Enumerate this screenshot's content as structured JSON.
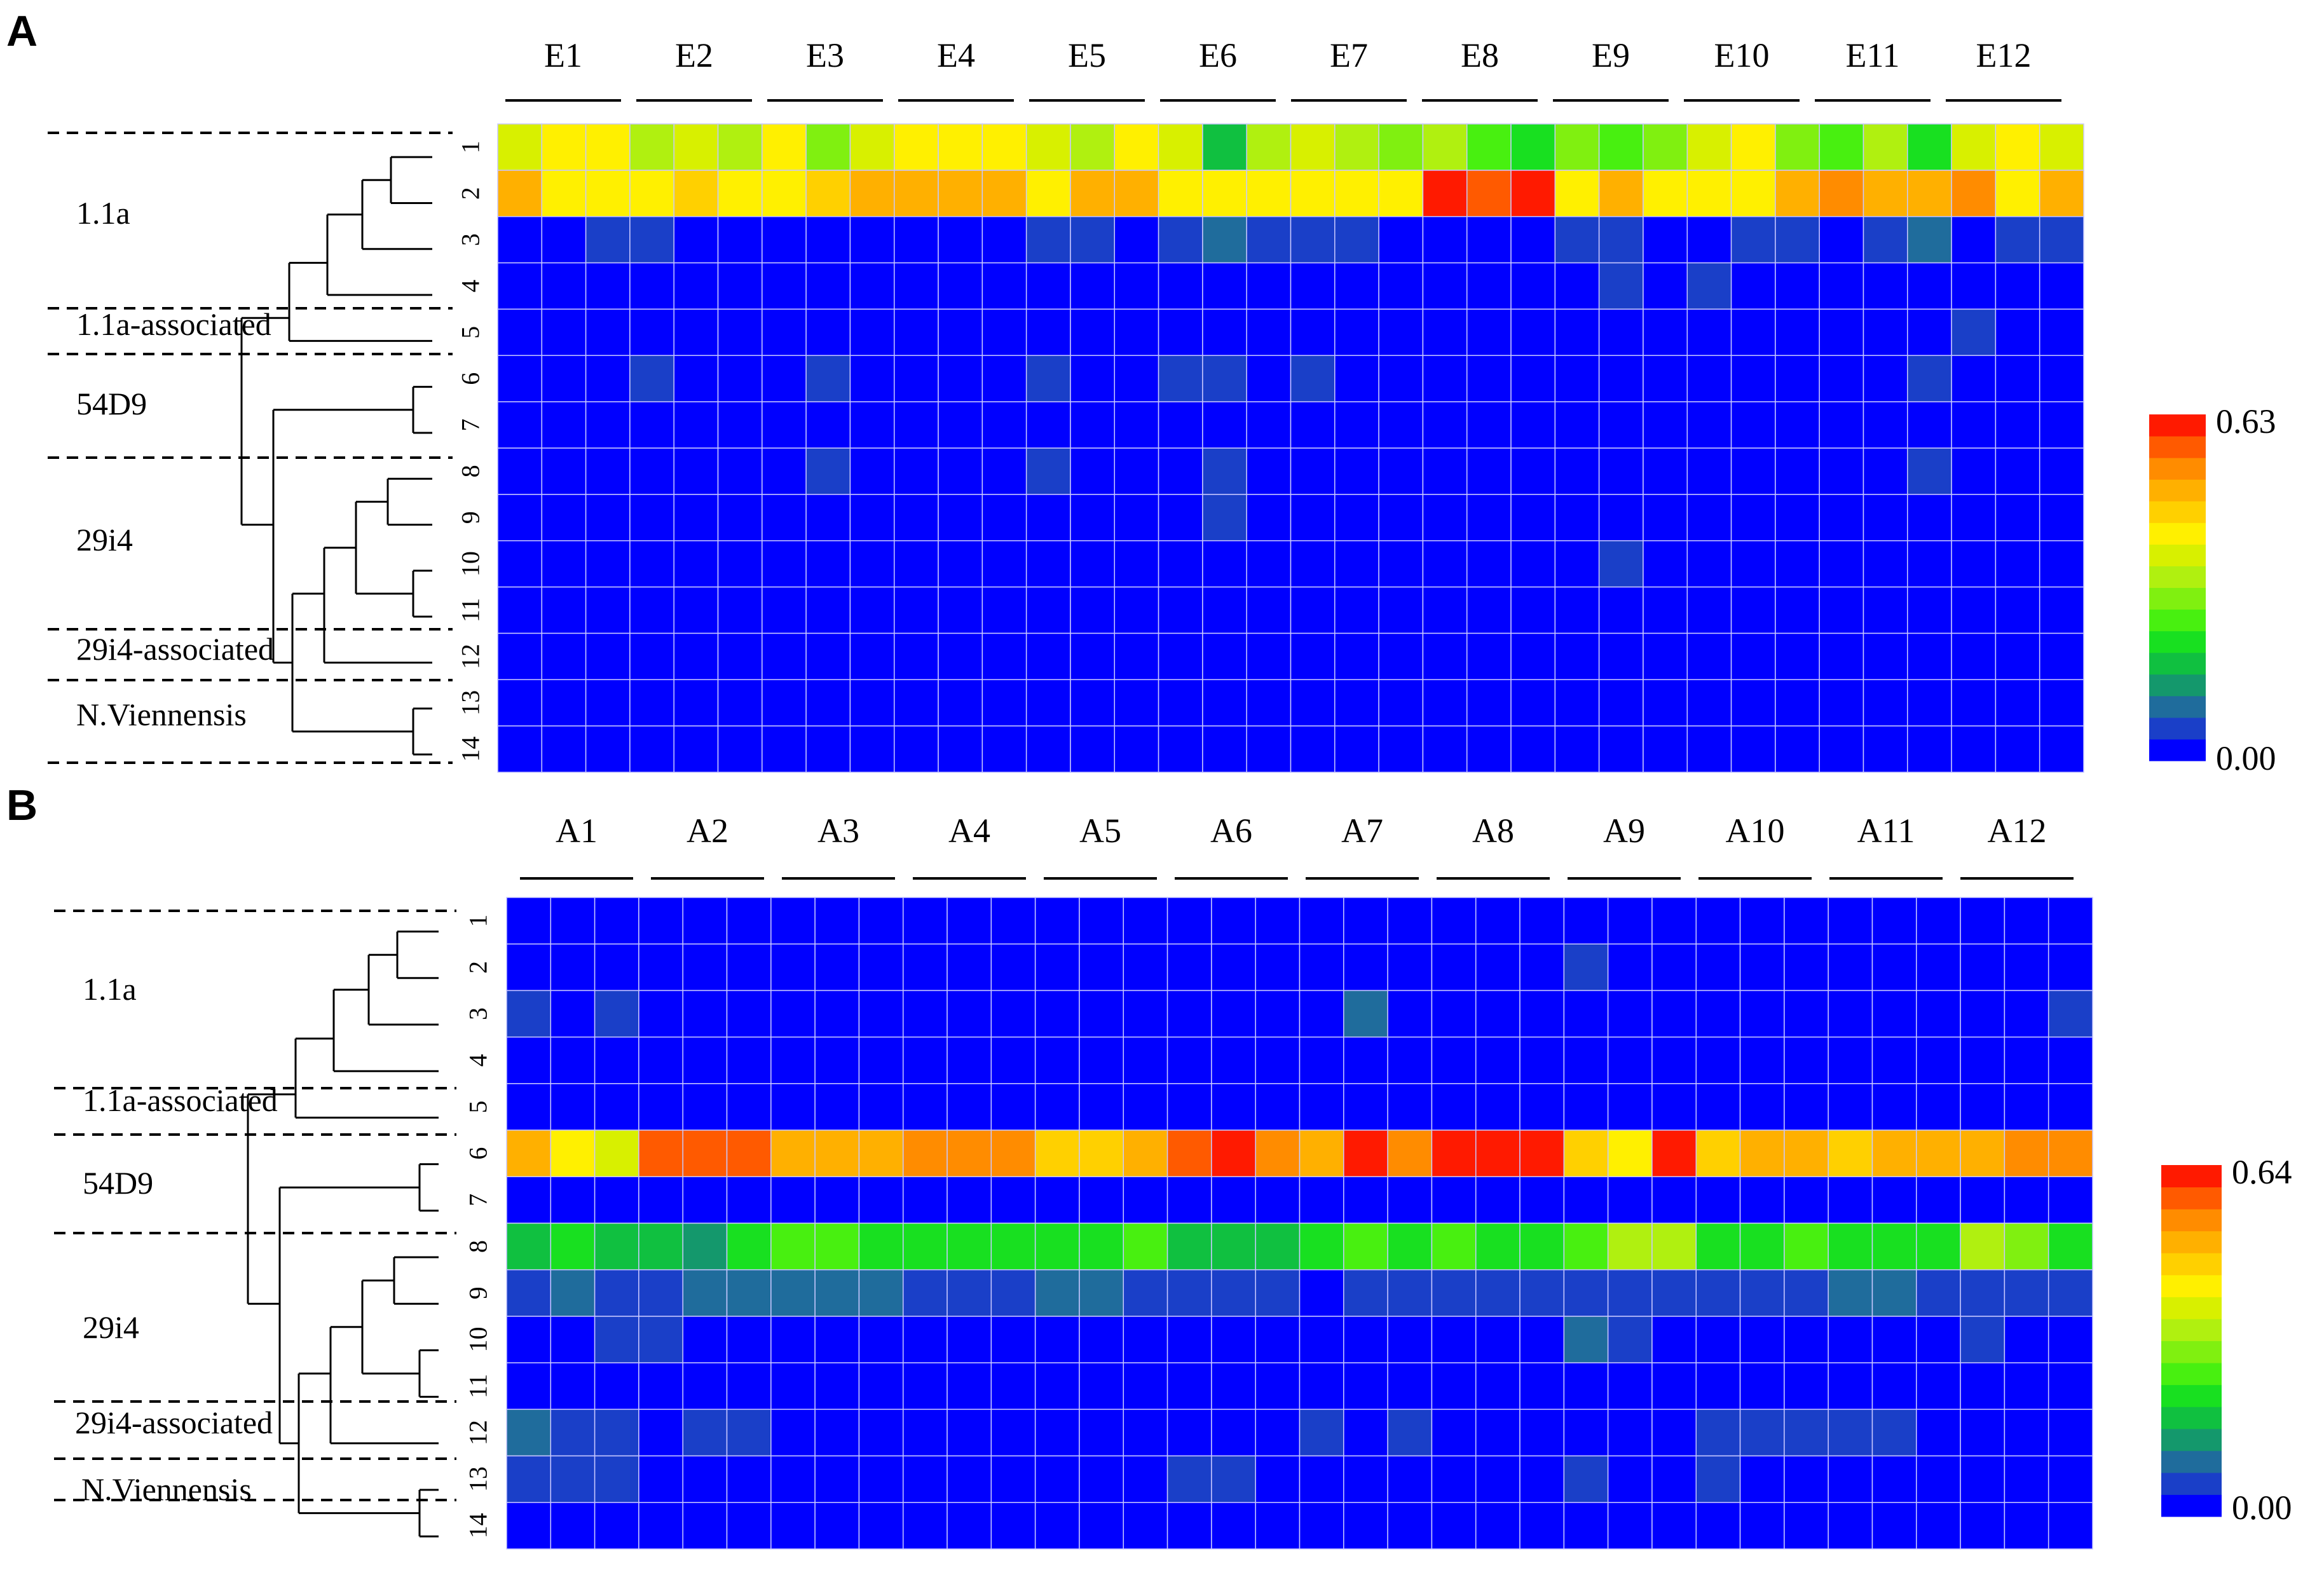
{
  "chart_data": [
    {
      "type": "heatmap",
      "panel_label": "A",
      "column_groups": [
        "E1",
        "E2",
        "E3",
        "E4",
        "E5",
        "E6",
        "E7",
        "E8",
        "E9",
        "E10",
        "E11",
        "E12"
      ],
      "replicates_per_group": 3,
      "row_labels": [
        "1",
        "2",
        "3",
        "4",
        "5",
        "6",
        "7",
        "8",
        "9",
        "10",
        "11",
        "12",
        "13",
        "14"
      ],
      "clades": [
        "1.1a",
        "1.1a-associated",
        "54D9",
        "29i4",
        "29i4-associated",
        "N.Viennensis"
      ],
      "colorbar": {
        "min": 0.0,
        "max": 0.63,
        "min_label": "0.00",
        "max_label": "0.63"
      },
      "values": [
        [
          0.38,
          0.4,
          0.4,
          0.33,
          0.39,
          0.32,
          0.4,
          0.28,
          0.38,
          0.44,
          0.4,
          0.4,
          0.36,
          0.33,
          0.44,
          0.38,
          0.16,
          0.32,
          0.38,
          0.33,
          0.28,
          0.32,
          0.26,
          0.2,
          0.3,
          0.26,
          0.28,
          0.38,
          0.44,
          0.3,
          0.24,
          0.33,
          0.22,
          0.38,
          0.4,
          0.36
        ],
        [
          0.5,
          0.4,
          0.44,
          0.4,
          0.46,
          0.4,
          0.43,
          0.46,
          0.5,
          0.52,
          0.5,
          0.5,
          0.4,
          0.5,
          0.5,
          0.4,
          0.44,
          0.4,
          0.4,
          0.4,
          0.44,
          0.63,
          0.58,
          0.63,
          0.44,
          0.5,
          0.4,
          0.44,
          0.44,
          0.5,
          0.56,
          0.5,
          0.5,
          0.54,
          0.44,
          0.5
        ],
        [
          0.0,
          0.0,
          0.05,
          0.05,
          0.0,
          0.0,
          0.0,
          0.0,
          0.0,
          0.0,
          0.0,
          0.0,
          0.05,
          0.05,
          0.0,
          0.05,
          0.1,
          0.05,
          0.05,
          0.05,
          0.0,
          0.0,
          0.0,
          0.0,
          0.05,
          0.05,
          0.0,
          0.0,
          0.05,
          0.05,
          0.0,
          0.05,
          0.1,
          0.0,
          0.05,
          0.05
        ],
        [
          0.0,
          0.0,
          0.0,
          0.0,
          0.0,
          0.0,
          0.0,
          0.0,
          0.0,
          0.0,
          0.0,
          0.0,
          0.0,
          0.0,
          0.0,
          0.0,
          0.0,
          0.0,
          0.0,
          0.0,
          0.0,
          0.0,
          0.0,
          0.0,
          0.0,
          0.05,
          0.0,
          0.05,
          0.0,
          0.0,
          0.0,
          0.0,
          0.0,
          0.0,
          0.0,
          0.0
        ],
        [
          0.0,
          0.0,
          0.0,
          0.0,
          0.0,
          0.0,
          0.0,
          0.0,
          0.0,
          0.0,
          0.0,
          0.0,
          0.0,
          0.0,
          0.0,
          0.0,
          0.0,
          0.0,
          0.0,
          0.0,
          0.0,
          0.0,
          0.0,
          0.0,
          0.0,
          0.0,
          0.0,
          0.0,
          0.0,
          0.0,
          0.0,
          0.0,
          0.0,
          0.05,
          0.0,
          0.0
        ],
        [
          0.0,
          0.0,
          0.0,
          0.05,
          0.0,
          0.0,
          0.0,
          0.05,
          0.0,
          0.0,
          0.0,
          0.0,
          0.05,
          0.0,
          0.0,
          0.05,
          0.05,
          0.0,
          0.05,
          0.0,
          0.0,
          0.0,
          0.0,
          0.0,
          0.0,
          0.0,
          0.0,
          0.0,
          0.0,
          0.0,
          0.0,
          0.0,
          0.05,
          0.0,
          0.0,
          0.0
        ],
        [
          0.0,
          0.0,
          0.0,
          0.0,
          0.0,
          0.0,
          0.0,
          0.0,
          0.0,
          0.0,
          0.0,
          0.0,
          0.0,
          0.0,
          0.0,
          0.0,
          0.0,
          0.0,
          0.0,
          0.0,
          0.0,
          0.0,
          0.0,
          0.0,
          0.0,
          0.0,
          0.0,
          0.0,
          0.0,
          0.0,
          0.0,
          0.0,
          0.0,
          0.0,
          0.0,
          0.0
        ],
        [
          0.0,
          0.0,
          0.0,
          0.0,
          0.0,
          0.0,
          0.0,
          0.05,
          0.0,
          0.0,
          0.0,
          0.0,
          0.05,
          0.0,
          0.0,
          0.0,
          0.05,
          0.0,
          0.0,
          0.0,
          0.0,
          0.0,
          0.0,
          0.0,
          0.0,
          0.0,
          0.0,
          0.0,
          0.0,
          0.0,
          0.0,
          0.0,
          0.05,
          0.0,
          0.0,
          0.0
        ],
        [
          0.0,
          0.0,
          0.0,
          0.0,
          0.0,
          0.0,
          0.0,
          0.0,
          0.0,
          0.0,
          0.0,
          0.0,
          0.0,
          0.0,
          0.0,
          0.0,
          0.05,
          0.0,
          0.0,
          0.0,
          0.0,
          0.0,
          0.0,
          0.0,
          0.0,
          0.0,
          0.0,
          0.0,
          0.0,
          0.0,
          0.0,
          0.0,
          0.0,
          0.0,
          0.0,
          0.0
        ],
        [
          0.0,
          0.0,
          0.0,
          0.0,
          0.0,
          0.0,
          0.0,
          0.0,
          0.0,
          0.0,
          0.0,
          0.0,
          0.0,
          0.0,
          0.0,
          0.0,
          0.0,
          0.0,
          0.0,
          0.0,
          0.0,
          0.0,
          0.0,
          0.0,
          0.0,
          0.05,
          0.0,
          0.0,
          0.0,
          0.0,
          0.0,
          0.0,
          0.0,
          0.0,
          0.0,
          0.0
        ],
        [
          0.0,
          0.0,
          0.0,
          0.0,
          0.0,
          0.0,
          0.0,
          0.0,
          0.0,
          0.0,
          0.0,
          0.0,
          0.0,
          0.0,
          0.0,
          0.0,
          0.0,
          0.0,
          0.0,
          0.0,
          0.0,
          0.0,
          0.0,
          0.0,
          0.0,
          0.0,
          0.0,
          0.0,
          0.0,
          0.0,
          0.0,
          0.0,
          0.0,
          0.0,
          0.0,
          0.0
        ],
        [
          0.0,
          0.0,
          0.0,
          0.0,
          0.0,
          0.0,
          0.0,
          0.0,
          0.0,
          0.0,
          0.0,
          0.0,
          0.0,
          0.0,
          0.0,
          0.0,
          0.0,
          0.0,
          0.0,
          0.0,
          0.0,
          0.0,
          0.0,
          0.0,
          0.0,
          0.0,
          0.0,
          0.0,
          0.0,
          0.0,
          0.0,
          0.0,
          0.0,
          0.0,
          0.0,
          0.0
        ],
        [
          0.0,
          0.0,
          0.0,
          0.0,
          0.0,
          0.0,
          0.0,
          0.0,
          0.0,
          0.0,
          0.0,
          0.0,
          0.0,
          0.0,
          0.0,
          0.0,
          0.0,
          0.0,
          0.0,
          0.0,
          0.0,
          0.0,
          0.0,
          0.0,
          0.0,
          0.0,
          0.0,
          0.0,
          0.0,
          0.0,
          0.0,
          0.0,
          0.0,
          0.0,
          0.0,
          0.0
        ],
        [
          0.0,
          0.0,
          0.0,
          0.0,
          0.0,
          0.0,
          0.0,
          0.0,
          0.0,
          0.0,
          0.0,
          0.0,
          0.0,
          0.0,
          0.0,
          0.0,
          0.0,
          0.0,
          0.0,
          0.0,
          0.0,
          0.0,
          0.0,
          0.0,
          0.0,
          0.0,
          0.0,
          0.0,
          0.0,
          0.0,
          0.0,
          0.0,
          0.0,
          0.0,
          0.0,
          0.0
        ]
      ]
    },
    {
      "type": "heatmap",
      "panel_label": "B",
      "column_groups": [
        "A1",
        "A2",
        "A3",
        "A4",
        "A5",
        "A6",
        "A7",
        "A8",
        "A9",
        "A10",
        "A11",
        "A12"
      ],
      "replicates_per_group": 3,
      "row_labels": [
        "1",
        "2",
        "3",
        "4",
        "5",
        "6",
        "7",
        "8",
        "9",
        "10",
        "11",
        "12",
        "13",
        "14"
      ],
      "clades": [
        "1.1a",
        "1.1a-associated",
        "54D9",
        "29i4",
        "29i4-associated",
        "N.Viennensis"
      ],
      "colorbar": {
        "min": 0.0,
        "max": 0.64,
        "min_label": "0.00",
        "max_label": "0.64"
      },
      "values": [
        [
          0.0,
          0.0,
          0.0,
          0.0,
          0.0,
          0.0,
          0.0,
          0.0,
          0.0,
          0.0,
          0.0,
          0.0,
          0.0,
          0.0,
          0.0,
          0.0,
          0.0,
          0.0,
          0.0,
          0.0,
          0.0,
          0.0,
          0.0,
          0.0,
          0.0,
          0.0,
          0.0,
          0.0,
          0.0,
          0.0,
          0.0,
          0.0,
          0.0,
          0.0,
          0.0,
          0.0
        ],
        [
          0.0,
          0.0,
          0.0,
          0.0,
          0.0,
          0.0,
          0.0,
          0.0,
          0.0,
          0.0,
          0.0,
          0.0,
          0.0,
          0.0,
          0.0,
          0.0,
          0.0,
          0.0,
          0.0,
          0.0,
          0.0,
          0.0,
          0.0,
          0.0,
          0.05,
          0.0,
          0.0,
          0.0,
          0.0,
          0.0,
          0.0,
          0.0,
          0.0,
          0.0,
          0.0,
          0.0
        ],
        [
          0.05,
          0.0,
          0.05,
          0.0,
          0.0,
          0.0,
          0.0,
          0.0,
          0.0,
          0.0,
          0.0,
          0.0,
          0.0,
          0.0,
          0.0,
          0.0,
          0.0,
          0.0,
          0.0,
          0.1,
          0.0,
          0.0,
          0.0,
          0.0,
          0.0,
          0.0,
          0.0,
          0.0,
          0.0,
          0.0,
          0.0,
          0.0,
          0.0,
          0.0,
          0.0,
          0.05
        ],
        [
          0.0,
          0.0,
          0.0,
          0.0,
          0.0,
          0.0,
          0.0,
          0.0,
          0.0,
          0.0,
          0.0,
          0.0,
          0.0,
          0.0,
          0.0,
          0.0,
          0.0,
          0.0,
          0.0,
          0.0,
          0.0,
          0.0,
          0.0,
          0.0,
          0.0,
          0.0,
          0.0,
          0.0,
          0.0,
          0.0,
          0.0,
          0.0,
          0.0,
          0.0,
          0.0,
          0.0
        ],
        [
          0.0,
          0.0,
          0.0,
          0.0,
          0.0,
          0.0,
          0.0,
          0.0,
          0.0,
          0.0,
          0.0,
          0.0,
          0.0,
          0.0,
          0.0,
          0.0,
          0.0,
          0.0,
          0.0,
          0.0,
          0.0,
          0.0,
          0.0,
          0.0,
          0.0,
          0.0,
          0.0,
          0.0,
          0.0,
          0.0,
          0.0,
          0.0,
          0.0,
          0.0,
          0.0,
          0.0
        ],
        [
          0.52,
          0.42,
          0.4,
          0.6,
          0.58,
          0.6,
          0.5,
          0.5,
          0.52,
          0.54,
          0.56,
          0.56,
          0.46,
          0.46,
          0.5,
          0.58,
          0.62,
          0.56,
          0.52,
          0.62,
          0.54,
          0.62,
          0.62,
          0.62,
          0.46,
          0.42,
          0.64,
          0.46,
          0.52,
          0.5,
          0.46,
          0.5,
          0.5,
          0.5,
          0.56,
          0.56
        ],
        [
          0.0,
          0.0,
          0.0,
          0.0,
          0.0,
          0.0,
          0.0,
          0.0,
          0.0,
          0.0,
          0.0,
          0.0,
          0.0,
          0.0,
          0.0,
          0.0,
          0.0,
          0.0,
          0.0,
          0.0,
          0.0,
          0.0,
          0.0,
          0.0,
          0.0,
          0.0,
          0.0,
          0.0,
          0.0,
          0.0,
          0.0,
          0.0,
          0.0,
          0.0,
          0.0,
          0.0
        ],
        [
          0.16,
          0.22,
          0.18,
          0.16,
          0.14,
          0.22,
          0.26,
          0.26,
          0.22,
          0.2,
          0.2,
          0.22,
          0.22,
          0.2,
          0.24,
          0.16,
          0.16,
          0.18,
          0.2,
          0.24,
          0.2,
          0.24,
          0.22,
          0.2,
          0.26,
          0.34,
          0.32,
          0.2,
          0.22,
          0.24,
          0.22,
          0.2,
          0.22,
          0.32,
          0.3,
          0.22
        ],
        [
          0.05,
          0.1,
          0.05,
          0.05,
          0.1,
          0.1,
          0.1,
          0.1,
          0.1,
          0.05,
          0.05,
          0.05,
          0.1,
          0.1,
          0.05,
          0.05,
          0.05,
          0.05,
          0.0,
          0.05,
          0.05,
          0.05,
          0.05,
          0.05,
          0.05,
          0.05,
          0.05,
          0.05,
          0.05,
          0.05,
          0.1,
          0.1,
          0.05,
          0.05,
          0.05,
          0.05
        ],
        [
          0.0,
          0.0,
          0.05,
          0.05,
          0.0,
          0.0,
          0.0,
          0.0,
          0.0,
          0.0,
          0.0,
          0.0,
          0.0,
          0.0,
          0.0,
          0.0,
          0.0,
          0.0,
          0.0,
          0.0,
          0.0,
          0.0,
          0.0,
          0.0,
          0.1,
          0.05,
          0.0,
          0.0,
          0.0,
          0.0,
          0.0,
          0.0,
          0.0,
          0.05,
          0.0,
          0.0
        ],
        [
          0.0,
          0.0,
          0.0,
          0.0,
          0.0,
          0.0,
          0.0,
          0.0,
          0.0,
          0.0,
          0.0,
          0.0,
          0.0,
          0.0,
          0.0,
          0.0,
          0.0,
          0.0,
          0.0,
          0.0,
          0.0,
          0.0,
          0.0,
          0.0,
          0.0,
          0.0,
          0.0,
          0.0,
          0.0,
          0.0,
          0.0,
          0.0,
          0.0,
          0.0,
          0.0,
          0.0
        ],
        [
          0.1,
          0.05,
          0.05,
          0.0,
          0.05,
          0.05,
          0.0,
          0.0,
          0.0,
          0.0,
          0.0,
          0.0,
          0.0,
          0.0,
          0.0,
          0.0,
          0.0,
          0.0,
          0.05,
          0.0,
          0.05,
          0.0,
          0.0,
          0.0,
          0.0,
          0.0,
          0.0,
          0.05,
          0.05,
          0.05,
          0.05,
          0.05,
          0.0,
          0.0,
          0.0,
          0.0
        ],
        [
          0.05,
          0.05,
          0.05,
          0.0,
          0.0,
          0.0,
          0.0,
          0.0,
          0.0,
          0.0,
          0.0,
          0.0,
          0.0,
          0.0,
          0.0,
          0.05,
          0.05,
          0.0,
          0.0,
          0.0,
          0.0,
          0.0,
          0.0,
          0.0,
          0.05,
          0.0,
          0.0,
          0.05,
          0.0,
          0.0,
          0.0,
          0.0,
          0.0,
          0.0,
          0.0,
          0.0
        ],
        [
          0.0,
          0.0,
          0.0,
          0.0,
          0.0,
          0.0,
          0.0,
          0.0,
          0.0,
          0.0,
          0.0,
          0.0,
          0.0,
          0.0,
          0.0,
          0.0,
          0.0,
          0.0,
          0.0,
          0.0,
          0.0,
          0.0,
          0.0,
          0.0,
          0.0,
          0.0,
          0.0,
          0.0,
          0.0,
          0.0,
          0.0,
          0.0,
          0.0,
          0.0,
          0.0,
          0.0
        ]
      ]
    }
  ],
  "colorscale": [
    "#0000ff",
    "#1a3fc8",
    "#1f6c9c",
    "#14986c",
    "#10c040",
    "#18e020",
    "#48f010",
    "#80f010",
    "#b0f010",
    "#d8f000",
    "#fff000",
    "#ffd000",
    "#ffb000",
    "#ff8c00",
    "#ff5a00",
    "#ff1a00"
  ]
}
